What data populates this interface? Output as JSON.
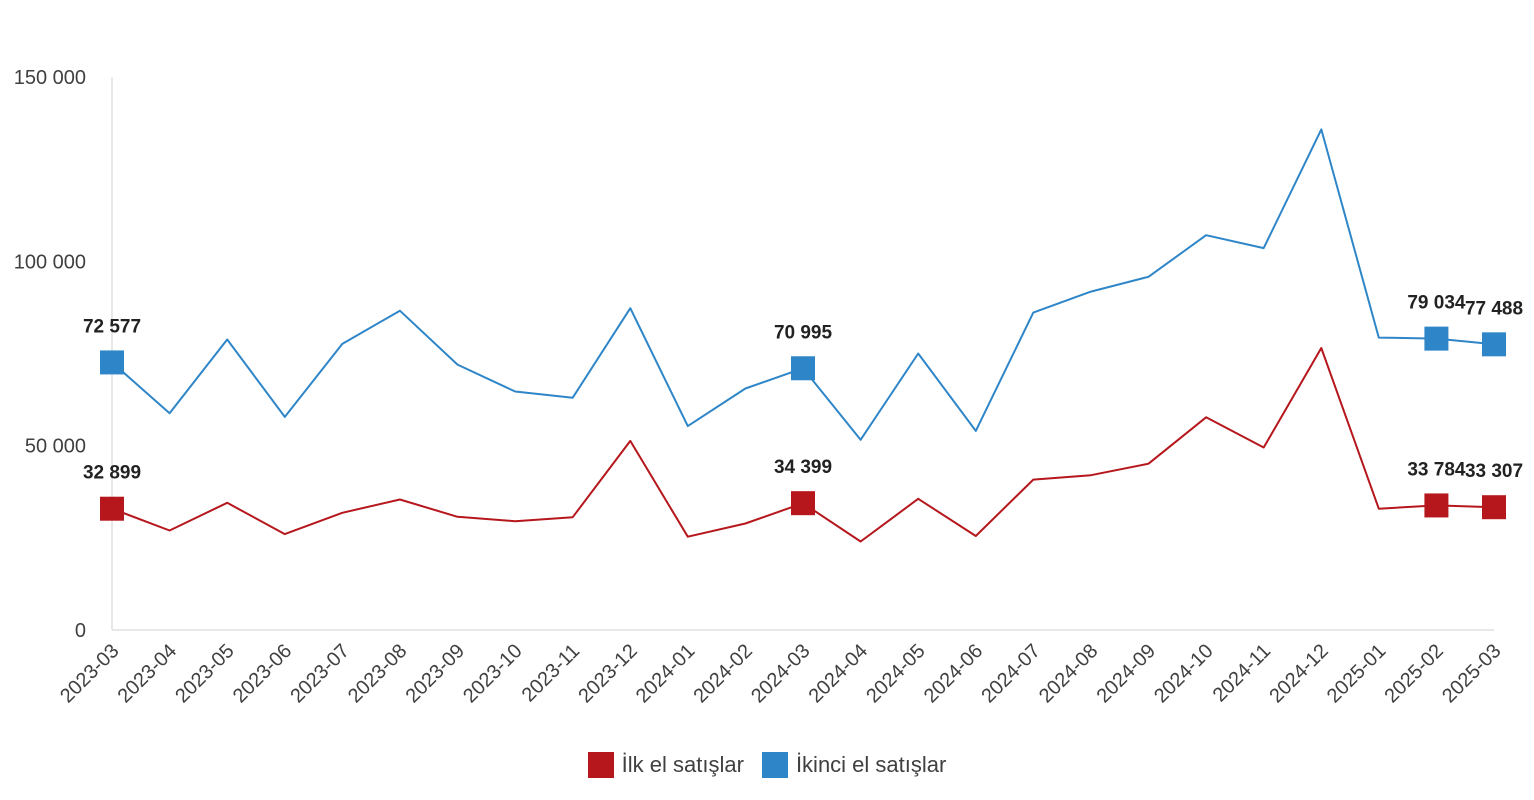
{
  "chart_data": {
    "type": "line",
    "title": "",
    "xlabel": "",
    "ylabel": "",
    "ylim": [
      0,
      150000
    ],
    "yticks": [
      0,
      50000,
      100000,
      150000
    ],
    "ytick_labels": [
      "0",
      "50 000",
      "100 000",
      "150 000"
    ],
    "grid": false,
    "legend_position": "bottom-center",
    "categories": [
      "2023-03",
      "2023-04",
      "2023-05",
      "2023-06",
      "2023-07",
      "2023-08",
      "2023-09",
      "2023-10",
      "2023-11",
      "2023-12",
      "2024-01",
      "2024-02",
      "2024-03",
      "2024-04",
      "2024-05",
      "2024-06",
      "2024-07",
      "2024-08",
      "2024-09",
      "2024-10",
      "2024-11",
      "2024-12",
      "2025-01",
      "2025-02",
      "2025-03"
    ],
    "series": [
      {
        "name": "İkinci el satışlar",
        "color": "#2E86C8",
        "values": [
          72577,
          58800,
          78800,
          57800,
          77600,
          86600,
          72000,
          64700,
          63000,
          87300,
          55300,
          65500,
          70995,
          51600,
          75000,
          54000,
          86100,
          91800,
          95800,
          107100,
          103600,
          135800,
          79300,
          79034,
          77488
        ],
        "labeled": [
          {
            "index": 0,
            "text": "72 577"
          },
          {
            "index": 12,
            "text": "70 995"
          },
          {
            "index": 23,
            "text": "79 034"
          },
          {
            "index": 24,
            "text": "77 488"
          }
        ]
      },
      {
        "name": "İlk el satışlar",
        "color": "#B5171C",
        "values": [
          32899,
          27000,
          34500,
          26000,
          31800,
          35400,
          30700,
          29500,
          30600,
          51300,
          25300,
          28900,
          34399,
          24000,
          35600,
          25500,
          40800,
          42000,
          45100,
          57700,
          49500,
          76500,
          32900,
          33784,
          33307
        ],
        "labeled": [
          {
            "index": 0,
            "text": "32 899"
          },
          {
            "index": 12,
            "text": "34 399"
          },
          {
            "index": 23,
            "text": "33 784"
          },
          {
            "index": 24,
            "text": "33 307"
          }
        ]
      }
    ],
    "legend": [
      {
        "name": "İlk el satışlar",
        "color": "#B5171C"
      },
      {
        "name": "İkinci el satışlar",
        "color": "#2E86C8"
      }
    ]
  }
}
